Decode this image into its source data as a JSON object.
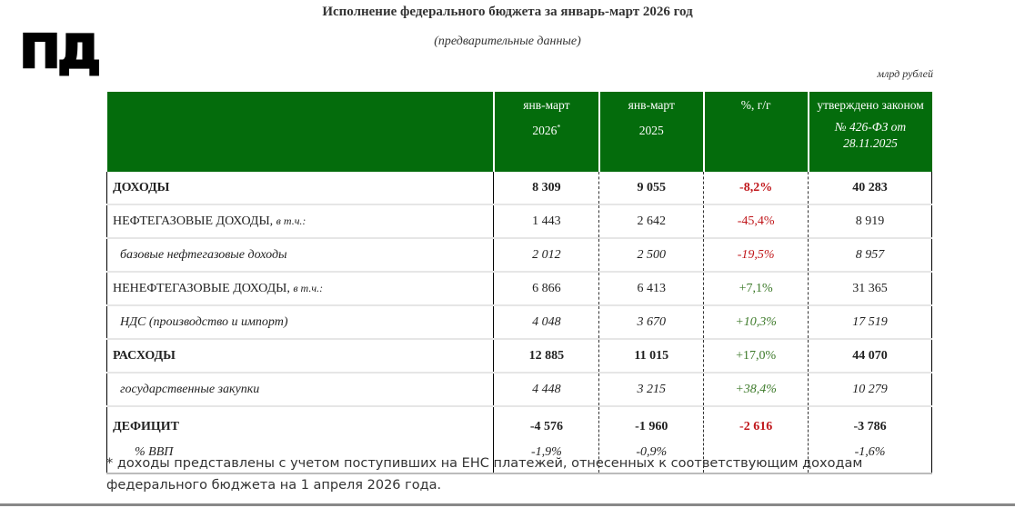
{
  "title": "Исполнение федерального бюджета за январь-март 2026 год",
  "subtitle": "(предварительные данные)",
  "logo_text": "ПД",
  "units": "млрд рублей",
  "colors": {
    "header_bg": "#046c0c",
    "negative": "#c0171b",
    "positive": "#3d7a2a"
  },
  "header": {
    "col1_line1": "янв-март",
    "col1_line2": "2026",
    "col1_mark": "*",
    "col2_line1": "янв-март",
    "col2_line2": "2025",
    "col3": "%, г/г",
    "col4_line1": "утверждено законом",
    "col4_line2": "№ 426-ФЗ от",
    "col4_line3": "28.11.2025"
  },
  "rows": [
    {
      "label": "ДОХОДЫ",
      "suffix": "",
      "v2026": "8 309",
      "v2025": "9 055",
      "yoy": "-8,2%",
      "law": "40 283"
    },
    {
      "label": "НЕФТЕГАЗОВЫЕ ДОХОДЫ,",
      "suffix": "в т.ч.:",
      "v2026": "1 443",
      "v2025": "2 642",
      "yoy": "-45,4%",
      "law": "8 919"
    },
    {
      "label": "базовые нефтегазовые доходы",
      "suffix": "",
      "v2026": "2 012",
      "v2025": "2 500",
      "yoy": "-19,5%",
      "law": "8 957"
    },
    {
      "label": "НЕНЕФТЕГАЗОВЫЕ ДОХОДЫ,",
      "suffix": "в т.ч.:",
      "v2026": "6 866",
      "v2025": "6 413",
      "yoy": "+7,1%",
      "law": "31 365"
    },
    {
      "label": "НДС (производство и импорт)",
      "suffix": "",
      "v2026": "4 048",
      "v2025": "3 670",
      "yoy": "+10,3%",
      "law": "17 519"
    },
    {
      "label": "РАСХОДЫ",
      "suffix": "",
      "v2026": "12 885",
      "v2025": "11 015",
      "yoy": "+17,0%",
      "law": "44 070"
    },
    {
      "label": "государственные закупки",
      "suffix": "",
      "v2026": "4 448",
      "v2025": "3 215",
      "yoy": "+38,4%",
      "law": "10 279"
    },
    {
      "label": "ДЕФИЦИТ",
      "sublabel": "% ВВП",
      "v2026": "-4 576",
      "v2026_sub": "-1,9%",
      "v2025": "-1 960",
      "v2025_sub": "-0,9%",
      "yoy": "-2 616",
      "law": "-3 786",
      "law_sub": "-1,6%"
    }
  ],
  "footnote_line1": "* доходы представлены с учетом поступивших на ЕНС платежей, отнесенных к соответствующим доходам",
  "footnote_line2": "федерального бюджета на 1 апреля 2026 года."
}
